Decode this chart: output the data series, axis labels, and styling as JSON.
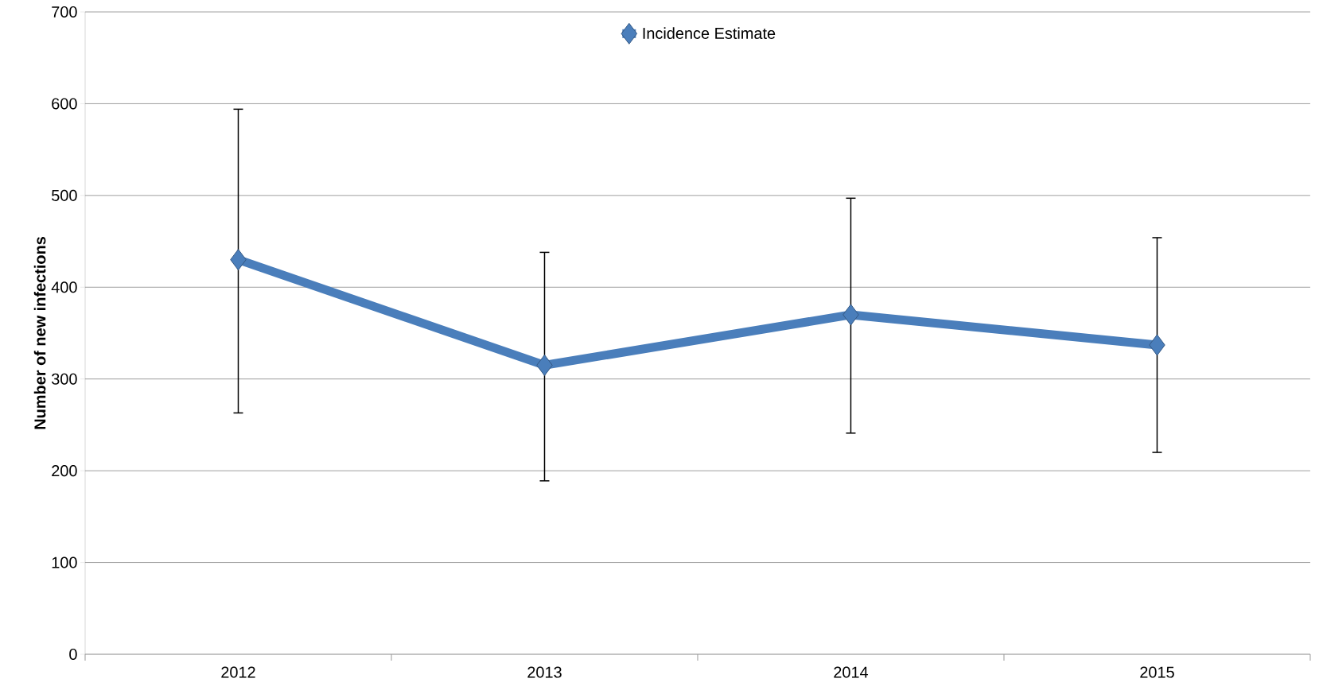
{
  "chart_data": {
    "type": "line",
    "ylabel": "Number of new infections",
    "categories": [
      "2012",
      "2013",
      "2014",
      "2015"
    ],
    "series": [
      {
        "name": "Incidence Estimate",
        "color": "#4a7ebb",
        "values": [
          430,
          315,
          370,
          337
        ],
        "errors": [
          [
            263,
            594
          ],
          [
            189,
            438
          ],
          [
            241,
            497
          ],
          [
            220,
            454
          ]
        ]
      }
    ],
    "ylim": [
      0,
      700
    ],
    "yticks": [
      0,
      100,
      200,
      300,
      400,
      500,
      600,
      700
    ],
    "grid": "y",
    "legend": "top",
    "marker": "diamond",
    "line_style": "solid"
  }
}
